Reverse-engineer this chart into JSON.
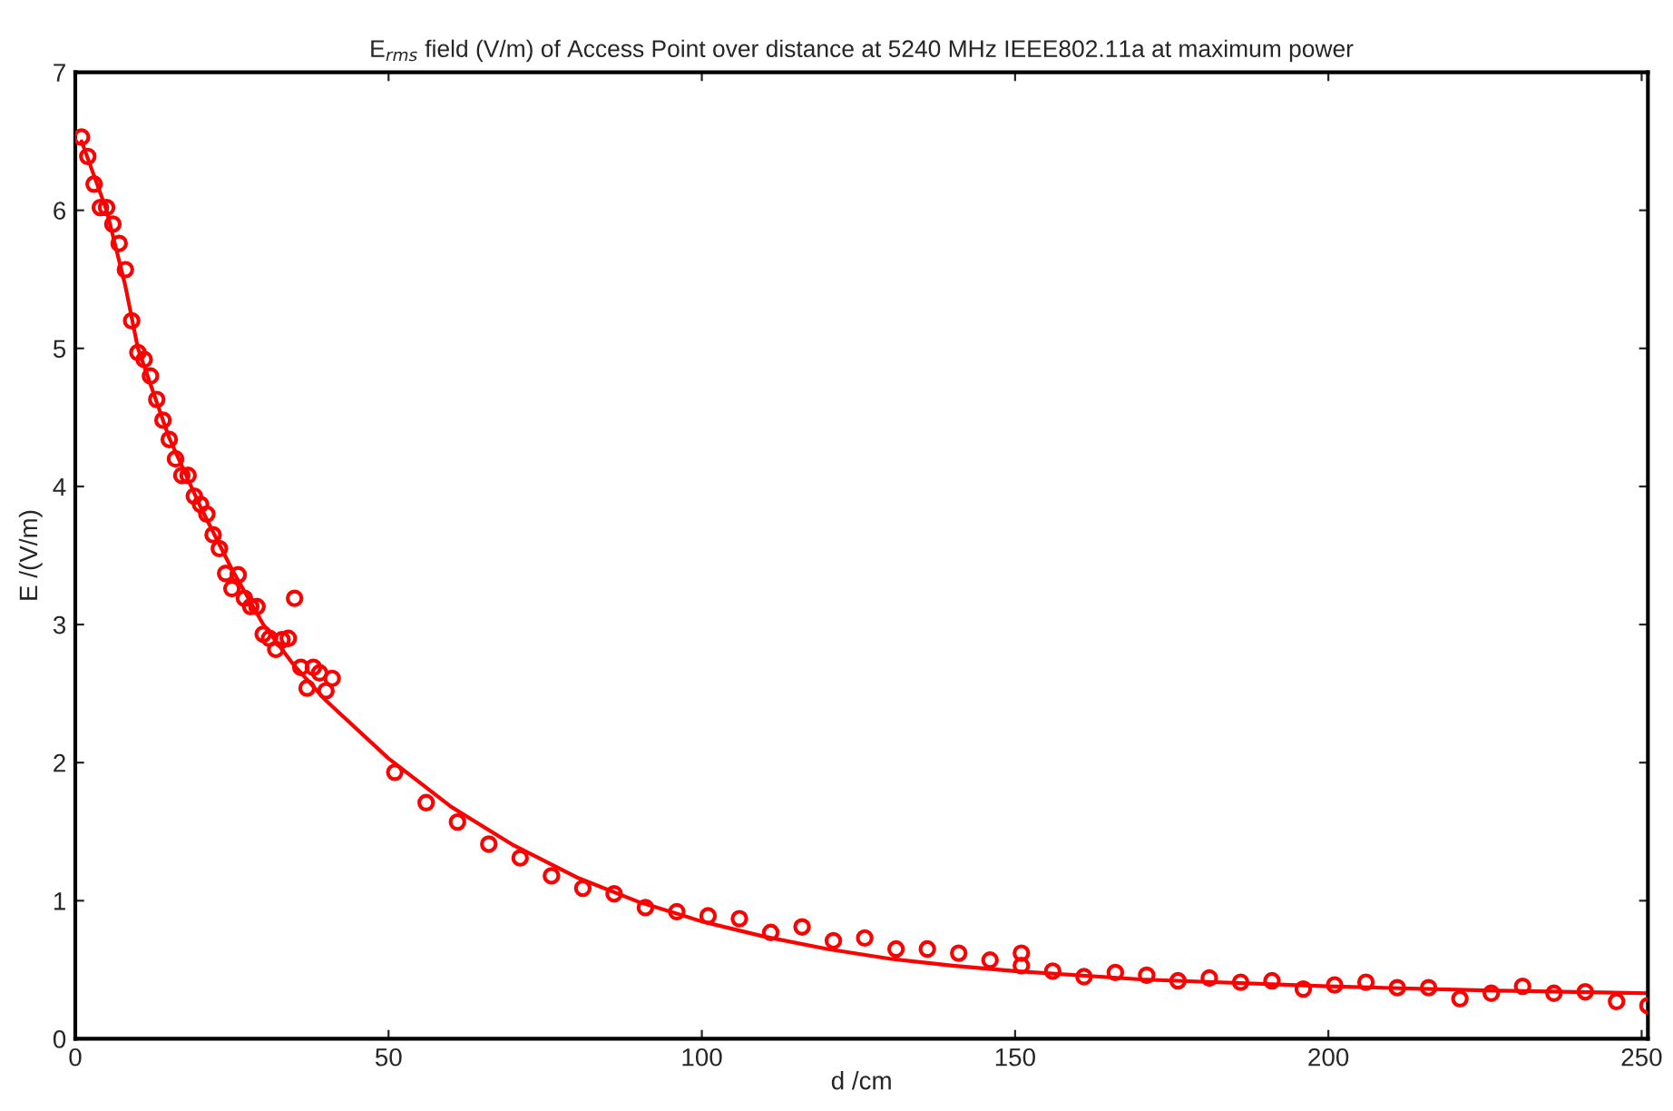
{
  "chart_data": {
    "type": "scatter",
    "title": "E$_{rms}$ field (V/m) of Access Point over distance at 5240 MHz IEEE802.11a at maximum power",
    "xlabel": "d /cm",
    "ylabel": "E /(V/m)",
    "xlim": [
      0,
      251
    ],
    "xticks": [
      0,
      50,
      100,
      150,
      200,
      250
    ],
    "ylim": [
      0,
      7
    ],
    "yticks": [
      0,
      1,
      2,
      3,
      4,
      5,
      6,
      7
    ],
    "grid": false,
    "series": [
      {
        "color": "#ff0000",
        "marker": "circle",
        "x": [
          1,
          2,
          3,
          4,
          5,
          6,
          7,
          8,
          9,
          10,
          11,
          12,
          13,
          14,
          15,
          16,
          17,
          18,
          19,
          20,
          21,
          22,
          23,
          24,
          25,
          26,
          27,
          28,
          29,
          30,
          31,
          32,
          33,
          34,
          35,
          36,
          37,
          38,
          39,
          40,
          41,
          51,
          56,
          61,
          66,
          71,
          76,
          81,
          86,
          91,
          96,
          101,
          106,
          111,
          116,
          121,
          126,
          131,
          136,
          141,
          146,
          151,
          151,
          156,
          161,
          166,
          171,
          176,
          181,
          186,
          191,
          196,
          201,
          206,
          211,
          216,
          221,
          226,
          231,
          236,
          241,
          246,
          251
        ],
        "values": [
          6.53,
          6.39,
          6.19,
          6.02,
          6.02,
          5.9,
          5.76,
          5.57,
          5.2,
          4.97,
          4.92,
          4.8,
          4.63,
          4.48,
          4.34,
          4.2,
          4.08,
          4.08,
          3.93,
          3.87,
          3.8,
          3.65,
          3.55,
          3.37,
          3.26,
          3.36,
          3.19,
          3.13,
          3.13,
          2.93,
          2.9,
          2.82,
          2.89,
          2.9,
          3.19,
          2.69,
          2.54,
          2.69,
          2.65,
          2.52,
          2.61,
          1.93,
          1.71,
          1.57,
          1.41,
          1.31,
          1.18,
          1.09,
          1.05,
          0.95,
          0.92,
          0.89,
          0.87,
          0.77,
          0.81,
          0.71,
          0.73,
          0.65,
          0.65,
          0.62,
          0.57,
          0.62,
          0.53,
          0.49,
          0.45,
          0.48,
          0.46,
          0.42,
          0.44,
          0.41,
          0.42,
          0.36,
          0.39,
          0.41,
          0.37,
          0.37,
          0.29,
          0.33,
          0.38,
          0.33,
          0.34,
          0.27,
          0.24
        ]
      },
      {
        "type": "line",
        "color": "#ff0000",
        "marker": "none",
        "line_style": "solid",
        "x": [
          1,
          3,
          5,
          8,
          10,
          15,
          20,
          25,
          30,
          35,
          40,
          50,
          60,
          70,
          80,
          90,
          100,
          110,
          120,
          130,
          140,
          150,
          170,
          200,
          225,
          251
        ],
        "values": [
          6.5,
          6.25,
          6.0,
          5.45,
          5.0,
          4.35,
          3.85,
          3.4,
          3.0,
          2.7,
          2.45,
          2.03,
          1.68,
          1.4,
          1.17,
          0.99,
          0.85,
          0.74,
          0.65,
          0.58,
          0.53,
          0.49,
          0.43,
          0.38,
          0.35,
          0.33
        ]
      }
    ]
  }
}
